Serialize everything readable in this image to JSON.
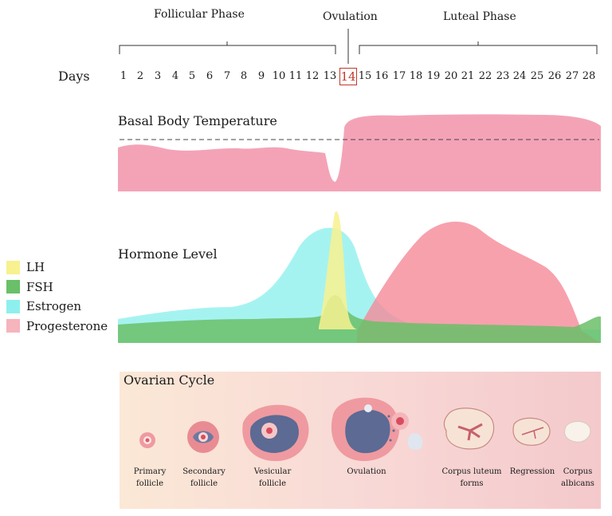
{
  "phases": {
    "follicular": "Follicular Phase",
    "ovulation": "Ovulation",
    "luteal": "Luteal Phase"
  },
  "days_label": "Days",
  "days": [
    "1",
    "2",
    "3",
    "4",
    "5",
    "6",
    "7",
    "8",
    "9",
    "10",
    "11",
    "12",
    "13",
    "14",
    "15",
    "16",
    "17",
    "18",
    "19",
    "20",
    "21",
    "22",
    "23",
    "24",
    "25",
    "26",
    "27",
    "28"
  ],
  "bbt": {
    "title": "Basal Body Temperature",
    "color": "#f4a3b7"
  },
  "hormones": {
    "title": "Hormone Level",
    "legend": [
      {
        "label": "LH",
        "color": "#f8f18f"
      },
      {
        "label": "FSH",
        "color": "#6abf69"
      },
      {
        "label": "Estrogen",
        "color": "#8ef0ee"
      },
      {
        "label": "Progesterone",
        "color": "#f6b4bd"
      }
    ]
  },
  "ovarian": {
    "title": "Ovarian Cycle",
    "stages": [
      {
        "line1": "Primary",
        "line2": "follicle"
      },
      {
        "line1": "Secondary",
        "line2": "follicle"
      },
      {
        "line1": "Vesicular",
        "line2": "follicle"
      },
      {
        "line1": "Ovulation",
        "line2": ""
      },
      {
        "line1": "Corpus luteum",
        "line2": "forms"
      },
      {
        "line1": "Regression",
        "line2": ""
      },
      {
        "line1": "Corpus",
        "line2": "albicans"
      }
    ]
  }
}
